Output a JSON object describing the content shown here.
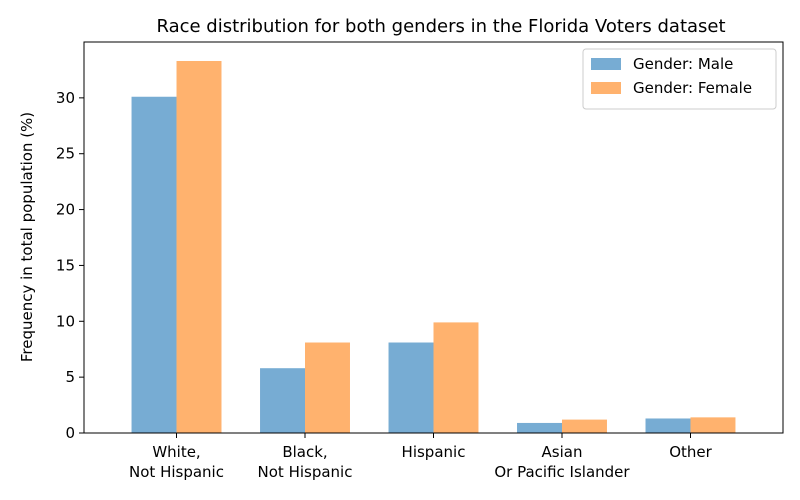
{
  "chart_data": {
    "type": "bar",
    "title": "Race distribution for both genders in the Florida Voters dataset",
    "xlabel": "",
    "ylabel": "Frequency in total population (%)",
    "categories": [
      [
        "White,",
        "Not Hispanic"
      ],
      [
        "Black,",
        "Not Hispanic"
      ],
      [
        "Hispanic"
      ],
      [
        "Asian",
        "Or Pacific Islander"
      ],
      [
        "Other"
      ]
    ],
    "series": [
      {
        "name": "Gender: Male",
        "color": "#77acd3",
        "values": [
          30.1,
          5.8,
          8.1,
          0.9,
          1.3
        ]
      },
      {
        "name": "Gender: Female",
        "color": "#ffb26e",
        "values": [
          33.3,
          8.1,
          9.9,
          1.2,
          1.4
        ]
      }
    ],
    "ylim": [
      0,
      35
    ],
    "yticks": [
      0,
      5,
      10,
      15,
      20,
      25,
      30
    ],
    "grid": false,
    "legend_position": "top-right"
  }
}
